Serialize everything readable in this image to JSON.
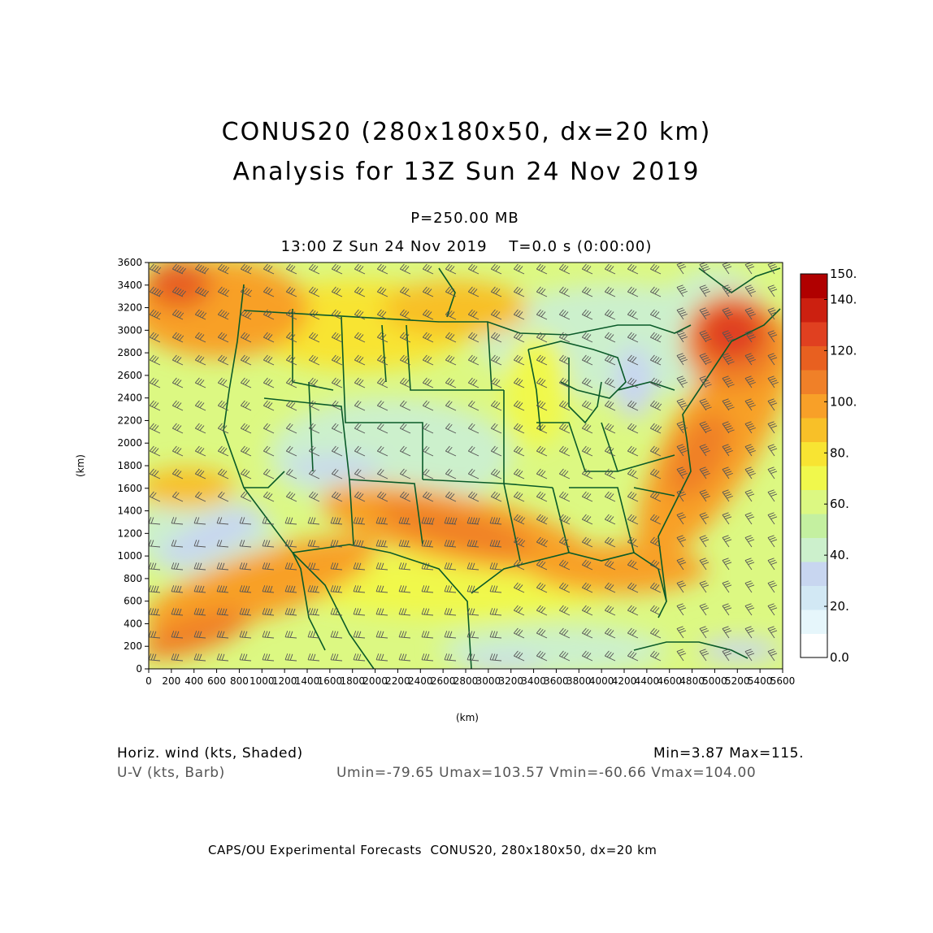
{
  "header": {
    "title_line1": "CONUS20 (280x180x50, dx=20 km)",
    "title_line2": "Analysis for 13Z Sun 24 Nov 2019",
    "level": "P=250.00 MB",
    "valid_time": "13:00 Z Sun 24 Nov 2019    T=0.0 s (0:00:00)"
  },
  "axes": {
    "x_label": "(km)",
    "y_label": "(km)",
    "x_ticks": [
      "0",
      "200",
      "400",
      "600",
      "800",
      "1000",
      "1200",
      "1400",
      "1600",
      "1800",
      "2000",
      "2200",
      "2400",
      "2600",
      "2800",
      "3000",
      "3200",
      "3400",
      "3600",
      "3800",
      "4000",
      "4200",
      "4400",
      "4600",
      "4800",
      "5000",
      "5200",
      "5400",
      "5600"
    ],
    "y_ticks": [
      "0",
      "200",
      "400",
      "600",
      "800",
      "1000",
      "1200",
      "1400",
      "1600",
      "1800",
      "2000",
      "2200",
      "2400",
      "2600",
      "2800",
      "3000",
      "3200",
      "3400",
      "3600"
    ],
    "x_range_km": [
      0,
      5600
    ],
    "y_range_km": [
      0,
      3600
    ]
  },
  "colorbar": {
    "labels": [
      "150.",
      "140.",
      "120.",
      "100.",
      "80.",
      "60.",
      "40.",
      "20.",
      "0.0"
    ],
    "colors": [
      "#ffffff",
      "#e6f6fb",
      "#d2e8f4",
      "#c8d6f0",
      "#ccf0cc",
      "#c4f0a0",
      "#dcf882",
      "#f0f84c",
      "#f8e432",
      "#f8c028",
      "#f8a028",
      "#f08028",
      "#e86020",
      "#e04020",
      "#cc2010",
      "#b00000"
    ]
  },
  "footer": {
    "field1_name": "Horiz. wind (kts, Shaded)",
    "field1_stats": "Min=3.87 Max=115.",
    "field2_name": "U-V (kts, Barb)",
    "field2_stats": "Umin=-79.65 Umax=103.57 Vmin=-60.66 Vmax=104.00",
    "credit": "CAPS/OU Experimental Forecasts  CONUS20, 280x180x50, dx=20 km"
  }
}
